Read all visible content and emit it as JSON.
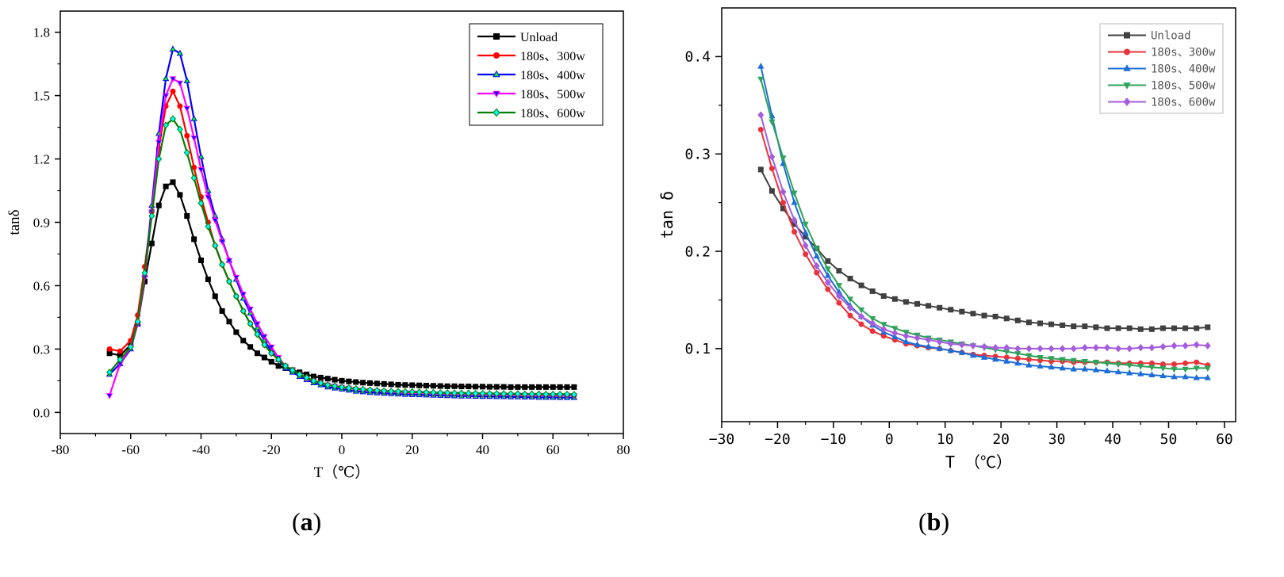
{
  "chart_data": [
    {
      "id": "a",
      "type": "line",
      "title": "",
      "xlabel": "T（℃）",
      "ylabel": "tanδ",
      "xlim": [
        -80,
        80
      ],
      "ylim": [
        -0.1,
        1.9
      ],
      "xticks": [
        -80,
        -60,
        -40,
        -20,
        0,
        20,
        40,
        60,
        80
      ],
      "xtick_labels": [
        "-80",
        "-60",
        "-40",
        "-20",
        "0",
        "20",
        "40",
        "60",
        "80"
      ],
      "yticks": [
        0.0,
        0.3,
        0.6,
        0.9,
        1.2,
        1.5,
        1.8
      ],
      "ytick_labels": [
        "0.0",
        "0.3",
        "0.6",
        "0.9",
        "1.2",
        "1.5",
        "1.8"
      ],
      "grid": false,
      "legend_position": "top-right",
      "x": [
        -66,
        -63,
        -60,
        -58,
        -56,
        -54,
        -52,
        -50,
        -48,
        -46,
        -44,
        -42,
        -40,
        -38,
        -36,
        -34,
        -32,
        -30,
        -28,
        -26,
        -24,
        -22,
        -20,
        -18,
        -16,
        -14,
        -12,
        -10,
        -8,
        -6,
        -4,
        -2,
        0,
        2,
        4,
        6,
        8,
        10,
        12,
        14,
        16,
        18,
        20,
        22,
        24,
        26,
        28,
        30,
        32,
        34,
        36,
        38,
        40,
        42,
        44,
        46,
        48,
        50,
        52,
        54,
        56,
        58,
        60,
        62,
        64,
        66
      ],
      "series": [
        {
          "name": "Unload",
          "color": "#000000",
          "marker": "square",
          "values": [
            0.28,
            0.27,
            0.32,
            0.42,
            0.62,
            0.8,
            0.98,
            1.07,
            1.09,
            1.03,
            0.93,
            0.82,
            0.72,
            0.63,
            0.55,
            0.48,
            0.43,
            0.38,
            0.34,
            0.31,
            0.28,
            0.26,
            0.24,
            0.22,
            0.21,
            0.2,
            0.19,
            0.18,
            0.17,
            0.165,
            0.16,
            0.155,
            0.15,
            0.147,
            0.144,
            0.141,
            0.139,
            0.137,
            0.135,
            0.133,
            0.131,
            0.13,
            0.129,
            0.128,
            0.127,
            0.126,
            0.125,
            0.124,
            0.124,
            0.123,
            0.123,
            0.122,
            0.122,
            0.121,
            0.121,
            0.121,
            0.12,
            0.12,
            0.12,
            0.12,
            0.12,
            0.12,
            0.12,
            0.12,
            0.12,
            0.12
          ]
        },
        {
          "name": "180s、300w",
          "color": "#ff0000",
          "marker": "circle",
          "values": [
            0.3,
            0.29,
            0.34,
            0.46,
            0.69,
            0.95,
            1.25,
            1.45,
            1.52,
            1.45,
            1.31,
            1.16,
            1.02,
            0.9,
            0.79,
            0.7,
            0.62,
            0.55,
            0.48,
            0.42,
            0.37,
            0.32,
            0.28,
            0.25,
            0.22,
            0.2,
            0.18,
            0.165,
            0.15,
            0.14,
            0.13,
            0.125,
            0.12,
            0.115,
            0.11,
            0.107,
            0.104,
            0.102,
            0.1,
            0.098,
            0.096,
            0.095,
            0.094,
            0.093,
            0.092,
            0.091,
            0.09,
            0.089,
            0.088,
            0.087,
            0.086,
            0.085,
            0.085,
            0.084,
            0.084,
            0.083,
            0.083,
            0.082,
            0.082,
            0.082,
            0.081,
            0.081,
            0.081,
            0.08,
            0.08,
            0.08
          ]
        },
        {
          "name": "180s、400w",
          "color": "#0000ff",
          "marker": "triangle-up",
          "fill": "#00ff00",
          "values": [
            0.18,
            0.23,
            0.3,
            0.42,
            0.65,
            0.98,
            1.32,
            1.58,
            1.72,
            1.7,
            1.57,
            1.39,
            1.21,
            1.05,
            0.93,
            0.82,
            0.72,
            0.63,
            0.54,
            0.47,
            0.4,
            0.34,
            0.29,
            0.25,
            0.21,
            0.19,
            0.17,
            0.155,
            0.14,
            0.13,
            0.12,
            0.115,
            0.11,
            0.105,
            0.1,
            0.097,
            0.094,
            0.092,
            0.09,
            0.088,
            0.087,
            0.085,
            0.084,
            0.083,
            0.082,
            0.081,
            0.08,
            0.079,
            0.078,
            0.077,
            0.077,
            0.076,
            0.075,
            0.075,
            0.074,
            0.074,
            0.073,
            0.073,
            0.072,
            0.072,
            0.071,
            0.071,
            0.071,
            0.07,
            0.07,
            0.07
          ]
        },
        {
          "name": "180s、500w",
          "color": "#ff00ff",
          "marker": "triangle-down",
          "fill": "#0000ff",
          "values": [
            0.08,
            0.23,
            0.31,
            0.42,
            0.64,
            0.95,
            1.28,
            1.5,
            1.58,
            1.56,
            1.44,
            1.3,
            1.15,
            1.02,
            0.91,
            0.81,
            0.72,
            0.64,
            0.56,
            0.49,
            0.42,
            0.36,
            0.31,
            0.26,
            0.22,
            0.2,
            0.18,
            0.16,
            0.15,
            0.14,
            0.13,
            0.125,
            0.12,
            0.115,
            0.11,
            0.106,
            0.103,
            0.1,
            0.098,
            0.096,
            0.095,
            0.094,
            0.093,
            0.092,
            0.091,
            0.09,
            0.089,
            0.088,
            0.088,
            0.087,
            0.086,
            0.086,
            0.085,
            0.085,
            0.084,
            0.084,
            0.083,
            0.083,
            0.083,
            0.082,
            0.082,
            0.082,
            0.081,
            0.081,
            0.081,
            0.08
          ]
        },
        {
          "name": "180s、600w",
          "color": "#008000",
          "marker": "diamond",
          "fill": "#00ffff",
          "values": [
            0.19,
            0.25,
            0.31,
            0.43,
            0.66,
            0.93,
            1.2,
            1.36,
            1.39,
            1.34,
            1.23,
            1.11,
            0.99,
            0.88,
            0.79,
            0.7,
            0.62,
            0.55,
            0.48,
            0.42,
            0.37,
            0.32,
            0.28,
            0.25,
            0.22,
            0.2,
            0.18,
            0.165,
            0.15,
            0.14,
            0.13,
            0.125,
            0.12,
            0.116,
            0.112,
            0.109,
            0.106,
            0.104,
            0.102,
            0.1,
            0.099,
            0.098,
            0.097,
            0.096,
            0.095,
            0.094,
            0.093,
            0.093,
            0.092,
            0.091,
            0.091,
            0.09,
            0.09,
            0.089,
            0.089,
            0.088,
            0.088,
            0.088,
            0.087,
            0.087,
            0.087,
            0.086,
            0.086,
            0.086,
            0.086,
            0.085
          ]
        }
      ]
    },
    {
      "id": "b",
      "type": "line",
      "title": "",
      "xlabel": "T （℃）",
      "ylabel": "tan δ",
      "xlim": [
        -30,
        62
      ],
      "ylim": [
        0.025,
        0.45
      ],
      "xticks": [
        -30,
        -20,
        -10,
        0,
        10,
        20,
        30,
        40,
        50,
        60
      ],
      "xtick_labels": [
        "−30",
        "−20",
        "−10",
        "0",
        "10",
        "20",
        "30",
        "40",
        "50",
        "60"
      ],
      "yticks": [
        0.1,
        0.2,
        0.3,
        0.4
      ],
      "ytick_labels": [
        "0.1",
        "0.2",
        "0.3",
        "0.4"
      ],
      "grid": false,
      "legend_position": "top-right",
      "x": [
        -23,
        -21,
        -19,
        -17,
        -15,
        -13,
        -11,
        -9,
        -7,
        -5,
        -3,
        -1,
        1,
        3,
        5,
        7,
        9,
        11,
        13,
        15,
        17,
        19,
        21,
        23,
        25,
        27,
        29,
        31,
        33,
        35,
        37,
        39,
        41,
        43,
        45,
        47,
        49,
        51,
        53,
        55,
        57
      ],
      "series": [
        {
          "name": "Unload",
          "color": "#404040",
          "marker": "square",
          "values": [
            0.284,
            0.262,
            0.244,
            0.228,
            0.215,
            0.203,
            0.19,
            0.18,
            0.172,
            0.165,
            0.159,
            0.154,
            0.151,
            0.148,
            0.146,
            0.144,
            0.142,
            0.14,
            0.138,
            0.136,
            0.134,
            0.133,
            0.131,
            0.129,
            0.127,
            0.126,
            0.125,
            0.124,
            0.123,
            0.123,
            0.122,
            0.121,
            0.121,
            0.121,
            0.12,
            0.12,
            0.121,
            0.121,
            0.121,
            0.121,
            0.122
          ]
        },
        {
          "name": "180s、300w",
          "color": "#e8333a",
          "marker": "circle",
          "values": [
            0.325,
            0.285,
            0.25,
            0.22,
            0.197,
            0.178,
            0.161,
            0.147,
            0.134,
            0.125,
            0.118,
            0.113,
            0.109,
            0.105,
            0.103,
            0.101,
            0.1,
            0.098,
            0.096,
            0.094,
            0.093,
            0.092,
            0.091,
            0.09,
            0.089,
            0.088,
            0.087,
            0.087,
            0.086,
            0.086,
            0.086,
            0.086,
            0.085,
            0.085,
            0.085,
            0.085,
            0.084,
            0.084,
            0.085,
            0.086,
            0.083
          ]
        },
        {
          "name": "180s、400w",
          "color": "#1c6ed6",
          "marker": "triangle-up",
          "values": [
            0.39,
            0.339,
            0.29,
            0.25,
            0.219,
            0.195,
            0.175,
            0.158,
            0.144,
            0.133,
            0.124,
            0.117,
            0.112,
            0.107,
            0.104,
            0.102,
            0.1,
            0.098,
            0.096,
            0.093,
            0.091,
            0.089,
            0.087,
            0.085,
            0.083,
            0.082,
            0.081,
            0.08,
            0.079,
            0.079,
            0.078,
            0.077,
            0.076,
            0.075,
            0.074,
            0.073,
            0.072,
            0.071,
            0.071,
            0.07,
            0.07
          ]
        },
        {
          "name": "180s、500w",
          "color": "#2ea35a",
          "marker": "triangle-down",
          "values": [
            0.377,
            0.333,
            0.296,
            0.26,
            0.228,
            0.203,
            0.182,
            0.165,
            0.151,
            0.14,
            0.131,
            0.125,
            0.121,
            0.117,
            0.114,
            0.111,
            0.109,
            0.107,
            0.105,
            0.103,
            0.101,
            0.099,
            0.097,
            0.095,
            0.093,
            0.091,
            0.09,
            0.089,
            0.088,
            0.087,
            0.086,
            0.085,
            0.084,
            0.083,
            0.082,
            0.081,
            0.08,
            0.079,
            0.079,
            0.08,
            0.08
          ]
        },
        {
          "name": "180s、600w",
          "color": "#a45ddc",
          "marker": "diamond",
          "values": [
            0.34,
            0.297,
            0.261,
            0.232,
            0.206,
            0.185,
            0.168,
            0.154,
            0.142,
            0.133,
            0.126,
            0.12,
            0.116,
            0.113,
            0.111,
            0.109,
            0.107,
            0.105,
            0.104,
            0.103,
            0.102,
            0.101,
            0.101,
            0.1,
            0.1,
            0.1,
            0.1,
            0.1,
            0.1,
            0.101,
            0.101,
            0.101,
            0.1,
            0.1,
            0.101,
            0.101,
            0.102,
            0.103,
            0.103,
            0.104,
            0.103
          ]
        }
      ]
    }
  ],
  "captions": {
    "a": {
      "open": "(",
      "letter": "a",
      "close": ")"
    },
    "b": {
      "open": "(",
      "letter": "b",
      "close": ")"
    }
  }
}
